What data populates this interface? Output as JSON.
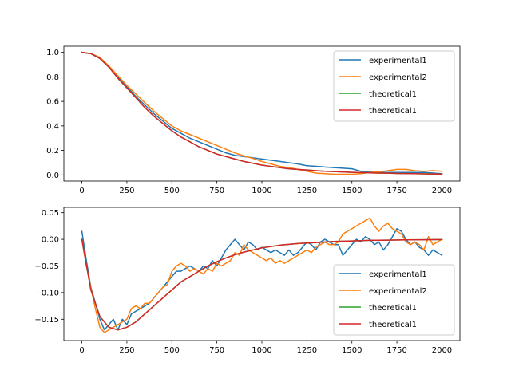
{
  "colors": {
    "experimental1": "#1f77b4",
    "experimental2": "#ff7f0e",
    "theoretical1_a": "#2ca02c",
    "theoretical1_b": "#d62728"
  },
  "chart_data": [
    {
      "type": "line",
      "title": "",
      "xlabel": "",
      "ylabel": "",
      "xlim": [
        -100,
        2100
      ],
      "ylim": [
        -0.05,
        1.05
      ],
      "xticks": [
        0,
        250,
        500,
        750,
        1000,
        1250,
        1500,
        1750,
        2000
      ],
      "yticks": [
        0.0,
        0.2,
        0.4,
        0.6,
        0.8,
        1.0
      ],
      "ytick_labels": [
        "0.0",
        "0.2",
        "0.4",
        "0.6",
        "0.8",
        "1.0"
      ],
      "grid": false,
      "legend_position": "top-right",
      "series": [
        {
          "name": "experimental1",
          "x": [
            0,
            50,
            100,
            150,
            200,
            250,
            300,
            350,
            400,
            450,
            500,
            550,
            600,
            650,
            700,
            750,
            800,
            850,
            900,
            950,
            1000,
            1050,
            1100,
            1150,
            1200,
            1250,
            1300,
            1350,
            1400,
            1450,
            1500,
            1550,
            1600,
            1650,
            1700,
            1750,
            1800,
            1850,
            1900,
            1950,
            2000
          ],
          "y": [
            1.0,
            0.99,
            0.95,
            0.88,
            0.8,
            0.72,
            0.64,
            0.57,
            0.5,
            0.44,
            0.38,
            0.34,
            0.3,
            0.27,
            0.24,
            0.21,
            0.18,
            0.16,
            0.15,
            0.14,
            0.13,
            0.12,
            0.11,
            0.1,
            0.09,
            0.075,
            0.07,
            0.065,
            0.06,
            0.055,
            0.05,
            0.03,
            0.025,
            0.02,
            0.02,
            0.02,
            0.02,
            0.02,
            0.02,
            0.015,
            0.01
          ]
        },
        {
          "name": "experimental2",
          "x": [
            0,
            50,
            100,
            150,
            200,
            250,
            300,
            350,
            400,
            450,
            500,
            550,
            600,
            650,
            700,
            750,
            800,
            850,
            900,
            950,
            1000,
            1050,
            1100,
            1150,
            1200,
            1250,
            1300,
            1350,
            1400,
            1450,
            1500,
            1550,
            1600,
            1650,
            1700,
            1750,
            1800,
            1850,
            1900,
            1950,
            2000
          ],
          "y": [
            1.0,
            0.99,
            0.96,
            0.89,
            0.81,
            0.73,
            0.66,
            0.59,
            0.52,
            0.46,
            0.4,
            0.36,
            0.33,
            0.3,
            0.27,
            0.24,
            0.21,
            0.18,
            0.155,
            0.135,
            0.11,
            0.09,
            0.07,
            0.06,
            0.045,
            0.03,
            0.015,
            0.01,
            0.005,
            0.005,
            0.005,
            0.01,
            0.02,
            0.025,
            0.035,
            0.045,
            0.045,
            0.035,
            0.03,
            0.035,
            0.03
          ]
        },
        {
          "name": "theoretical1",
          "x": [
            0,
            50,
            100,
            150,
            200,
            250,
            300,
            350,
            400,
            450,
            500,
            550,
            600,
            650,
            700,
            750,
            800,
            850,
            900,
            950,
            1000,
            1050,
            1100,
            1150,
            1200,
            1250,
            1300,
            1350,
            1400,
            1450,
            1500,
            1550,
            1600,
            1650,
            1700,
            1750,
            1800,
            1850,
            1900,
            1950,
            2000
          ],
          "y": [
            1.0,
            0.99,
            0.95,
            0.88,
            0.79,
            0.71,
            0.63,
            0.55,
            0.48,
            0.42,
            0.36,
            0.31,
            0.27,
            0.23,
            0.2,
            0.17,
            0.15,
            0.13,
            0.11,
            0.095,
            0.08,
            0.07,
            0.06,
            0.05,
            0.045,
            0.04,
            0.035,
            0.03,
            0.027,
            0.024,
            0.021,
            0.019,
            0.017,
            0.015,
            0.014,
            0.012,
            0.011,
            0.01,
            0.009,
            0.008,
            0.007
          ]
        },
        {
          "name": "theoretical1",
          "x": [
            0,
            50,
            100,
            150,
            200,
            250,
            300,
            350,
            400,
            450,
            500,
            550,
            600,
            650,
            700,
            750,
            800,
            850,
            900,
            950,
            1000,
            1050,
            1100,
            1150,
            1200,
            1250,
            1300,
            1350,
            1400,
            1450,
            1500,
            1550,
            1600,
            1650,
            1700,
            1750,
            1800,
            1850,
            1900,
            1950,
            2000
          ],
          "y": [
            1.0,
            0.99,
            0.95,
            0.88,
            0.79,
            0.71,
            0.63,
            0.55,
            0.48,
            0.42,
            0.36,
            0.31,
            0.27,
            0.23,
            0.2,
            0.17,
            0.15,
            0.13,
            0.11,
            0.095,
            0.08,
            0.07,
            0.06,
            0.05,
            0.045,
            0.04,
            0.035,
            0.03,
            0.027,
            0.024,
            0.021,
            0.019,
            0.017,
            0.015,
            0.014,
            0.012,
            0.011,
            0.01,
            0.009,
            0.008,
            0.007
          ]
        }
      ]
    },
    {
      "type": "line",
      "title": "",
      "xlabel": "",
      "ylabel": "",
      "xlim": [
        -100,
        2100
      ],
      "ylim": [
        -0.19,
        0.06
      ],
      "xticks": [
        0,
        250,
        500,
        750,
        1000,
        1250,
        1500,
        1750,
        2000
      ],
      "yticks": [
        -0.15,
        -0.1,
        -0.05,
        0.0,
        0.05
      ],
      "ytick_labels": [
        "−0.15",
        "−0.10",
        "−0.05",
        "0.00",
        "0.05"
      ],
      "grid": false,
      "legend_position": "lower-right",
      "series": [
        {
          "name": "experimental1",
          "x": [
            0,
            25,
            50,
            75,
            100,
            125,
            150,
            175,
            200,
            225,
            250,
            275,
            300,
            325,
            350,
            375,
            400,
            425,
            450,
            475,
            500,
            525,
            550,
            575,
            600,
            625,
            650,
            675,
            700,
            725,
            750,
            775,
            800,
            825,
            850,
            875,
            900,
            925,
            950,
            975,
            1000,
            1025,
            1050,
            1075,
            1100,
            1125,
            1150,
            1175,
            1200,
            1225,
            1250,
            1275,
            1300,
            1325,
            1350,
            1375,
            1400,
            1425,
            1450,
            1475,
            1500,
            1525,
            1550,
            1575,
            1600,
            1625,
            1650,
            1675,
            1700,
            1725,
            1750,
            1775,
            1800,
            1825,
            1850,
            1875,
            1900,
            1925,
            1950,
            1975,
            2000
          ],
          "y": [
            0.015,
            -0.04,
            -0.09,
            -0.12,
            -0.15,
            -0.17,
            -0.16,
            -0.15,
            -0.17,
            -0.15,
            -0.16,
            -0.14,
            -0.135,
            -0.13,
            -0.125,
            -0.12,
            -0.11,
            -0.1,
            -0.09,
            -0.08,
            -0.07,
            -0.06,
            -0.06,
            -0.055,
            -0.05,
            -0.055,
            -0.06,
            -0.05,
            -0.055,
            -0.04,
            -0.05,
            -0.035,
            -0.02,
            -0.01,
            0.0,
            -0.01,
            -0.02,
            -0.005,
            -0.01,
            -0.02,
            -0.015,
            -0.02,
            -0.025,
            -0.02,
            -0.025,
            -0.03,
            -0.02,
            -0.03,
            -0.025,
            -0.015,
            -0.005,
            -0.01,
            -0.02,
            -0.005,
            0.0,
            -0.005,
            -0.01,
            -0.01,
            -0.03,
            -0.02,
            -0.01,
            0.0,
            -0.005,
            0.005,
            0.0,
            -0.01,
            -0.005,
            -0.02,
            -0.01,
            0.005,
            0.02,
            0.015,
            0.0,
            -0.01,
            -0.005,
            -0.015,
            -0.02,
            -0.03,
            -0.02,
            -0.025,
            -0.03
          ]
        },
        {
          "name": "experimental2",
          "x": [
            0,
            25,
            50,
            75,
            100,
            125,
            150,
            175,
            200,
            225,
            250,
            275,
            300,
            325,
            350,
            375,
            400,
            425,
            450,
            475,
            500,
            525,
            550,
            575,
            600,
            625,
            650,
            675,
            700,
            725,
            750,
            775,
            800,
            825,
            850,
            875,
            900,
            925,
            950,
            975,
            1000,
            1025,
            1050,
            1075,
            1100,
            1125,
            1150,
            1175,
            1200,
            1225,
            1250,
            1275,
            1300,
            1325,
            1350,
            1375,
            1400,
            1425,
            1450,
            1475,
            1500,
            1525,
            1550,
            1575,
            1600,
            1625,
            1650,
            1675,
            1700,
            1725,
            1750,
            1775,
            1800,
            1825,
            1850,
            1875,
            1900,
            1925,
            1950,
            1975,
            2000
          ],
          "y": [
            0.0,
            -0.05,
            -0.09,
            -0.13,
            -0.165,
            -0.175,
            -0.17,
            -0.165,
            -0.16,
            -0.155,
            -0.15,
            -0.13,
            -0.125,
            -0.13,
            -0.12,
            -0.12,
            -0.11,
            -0.1,
            -0.09,
            -0.085,
            -0.06,
            -0.05,
            -0.045,
            -0.05,
            -0.06,
            -0.055,
            -0.06,
            -0.065,
            -0.055,
            -0.06,
            -0.045,
            -0.05,
            -0.045,
            -0.04,
            -0.025,
            -0.03,
            -0.01,
            -0.02,
            -0.025,
            -0.03,
            -0.035,
            -0.04,
            -0.035,
            -0.045,
            -0.04,
            -0.045,
            -0.04,
            -0.035,
            -0.03,
            -0.025,
            -0.02,
            -0.025,
            -0.015,
            -0.01,
            -0.005,
            -0.01,
            -0.01,
            -0.005,
            0.01,
            0.015,
            0.02,
            0.025,
            0.03,
            0.035,
            0.04,
            0.025,
            0.015,
            0.025,
            0.03,
            0.02,
            0.015,
            0.01,
            -0.005,
            -0.01,
            -0.005,
            -0.01,
            -0.02,
            0.005,
            -0.01,
            -0.005,
            0.0
          ]
        },
        {
          "name": "theoretical1",
          "x": [
            0,
            50,
            100,
            150,
            200,
            250,
            300,
            350,
            400,
            450,
            500,
            550,
            600,
            650,
            700,
            750,
            800,
            850,
            900,
            950,
            1000,
            1100,
            1200,
            1300,
            1400,
            1500,
            1600,
            1700,
            1800,
            1900,
            2000
          ],
          "y": [
            0.0,
            -0.095,
            -0.145,
            -0.165,
            -0.17,
            -0.165,
            -0.155,
            -0.14,
            -0.125,
            -0.11,
            -0.095,
            -0.08,
            -0.07,
            -0.06,
            -0.05,
            -0.042,
            -0.035,
            -0.029,
            -0.024,
            -0.02,
            -0.016,
            -0.011,
            -0.008,
            -0.006,
            -0.004,
            -0.003,
            -0.002,
            -0.0015,
            -0.001,
            -0.0008,
            -0.0005
          ]
        },
        {
          "name": "theoretical1",
          "x": [
            0,
            50,
            100,
            150,
            200,
            250,
            300,
            350,
            400,
            450,
            500,
            550,
            600,
            650,
            700,
            750,
            800,
            850,
            900,
            950,
            1000,
            1100,
            1200,
            1300,
            1400,
            1500,
            1600,
            1700,
            1800,
            1900,
            2000
          ],
          "y": [
            0.0,
            -0.095,
            -0.145,
            -0.165,
            -0.17,
            -0.165,
            -0.155,
            -0.14,
            -0.125,
            -0.11,
            -0.095,
            -0.08,
            -0.07,
            -0.06,
            -0.05,
            -0.042,
            -0.035,
            -0.029,
            -0.024,
            -0.02,
            -0.016,
            -0.011,
            -0.008,
            -0.006,
            -0.004,
            -0.003,
            -0.002,
            -0.0015,
            -0.001,
            -0.0008,
            -0.0005
          ]
        }
      ]
    }
  ]
}
